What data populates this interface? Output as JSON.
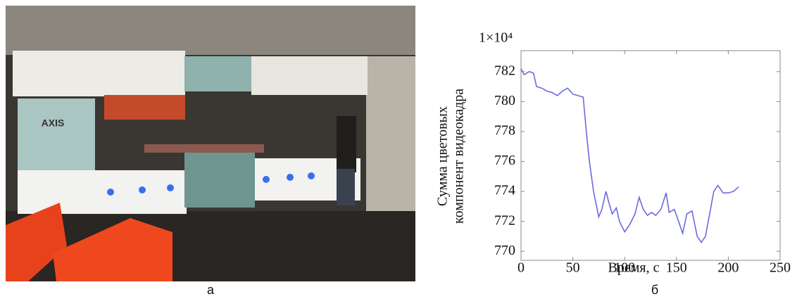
{
  "captions": [
    "а",
    "б"
  ],
  "chart_data": {
    "type": "line",
    "y_multiplier": "1×10⁴",
    "ylabel": [
      "Сумма цветовых",
      "компонент видеокадра"
    ],
    "xlabel": "Время, с",
    "xlim": [
      0,
      250
    ],
    "xticks": [
      0,
      50,
      100,
      150,
      200,
      250
    ],
    "ylim": [
      769.4,
      783.4
    ],
    "yticks": [
      770,
      772,
      774,
      776,
      778,
      780,
      782
    ],
    "series": [
      {
        "color": "#6a6ae0",
        "x": [
          0,
          3,
          8,
          12,
          15,
          20,
          25,
          30,
          35,
          40,
          45,
          50,
          55,
          60,
          63,
          66,
          70,
          75,
          78,
          82,
          85,
          88,
          92,
          95,
          100,
          105,
          110,
          114,
          118,
          122,
          126,
          130,
          135,
          140,
          143,
          148,
          152,
          156,
          160,
          165,
          170,
          174,
          178,
          182,
          186,
          190,
          195,
          200,
          205,
          210
        ],
        "values": [
          782.2,
          781.8,
          782.0,
          781.9,
          781.0,
          780.9,
          780.7,
          780.6,
          780.4,
          780.7,
          780.9,
          780.5,
          780.4,
          780.3,
          778,
          776,
          774,
          772.3,
          772.8,
          774,
          773.2,
          772.5,
          772.9,
          772,
          771.3,
          771.8,
          772.5,
          773.6,
          772.8,
          772.4,
          772.6,
          772.4,
          772.8,
          773.9,
          772.6,
          772.8,
          772.0,
          771.2,
          772.5,
          772.7,
          771.0,
          770.6,
          771.0,
          772.5,
          774.0,
          774.4,
          773.9,
          773.9,
          774.0,
          774.3
        ]
      }
    ]
  }
}
